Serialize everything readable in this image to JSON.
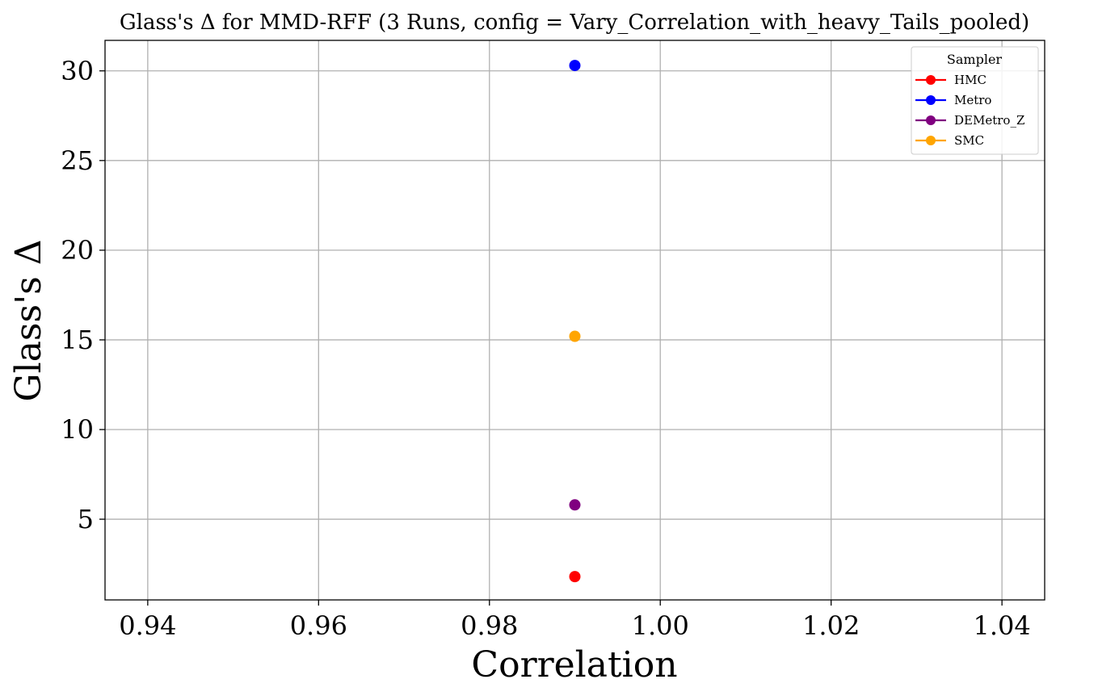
{
  "chart_data": {
    "type": "scatter",
    "title": "Glass's Δ for MMD-RFF (3 Runs, config = Vary_Correlation_with_heavy_Tails_pooled)",
    "xlabel": "Correlation",
    "ylabel": "Glass's Δ",
    "xlim": [
      0.935,
      1.045
    ],
    "ylim": [
      0.5,
      31.7
    ],
    "xticks": [
      0.94,
      0.96,
      0.98,
      1.0,
      1.02,
      1.04
    ],
    "xtick_labels": [
      "0.94",
      "0.96",
      "0.98",
      "1.00",
      "1.02",
      "1.04"
    ],
    "yticks": [
      5,
      10,
      15,
      20,
      25,
      30
    ],
    "ytick_labels": [
      "5",
      "10",
      "15",
      "20",
      "25",
      "30"
    ],
    "grid": true,
    "legend": {
      "title": "Sampler",
      "placement": "top-right"
    },
    "series": [
      {
        "name": "HMC",
        "color": "#ff0000",
        "x": [
          0.99
        ],
        "y": [
          1.8
        ]
      },
      {
        "name": "Metro",
        "color": "#0000ff",
        "x": [
          0.99
        ],
        "y": [
          30.3
        ]
      },
      {
        "name": "DEMetro_Z",
        "color": "#800080",
        "x": [
          0.99
        ],
        "y": [
          5.8
        ]
      },
      {
        "name": "SMC",
        "color": "#ffa500",
        "x": [
          0.99
        ],
        "y": [
          15.2
        ]
      }
    ]
  }
}
